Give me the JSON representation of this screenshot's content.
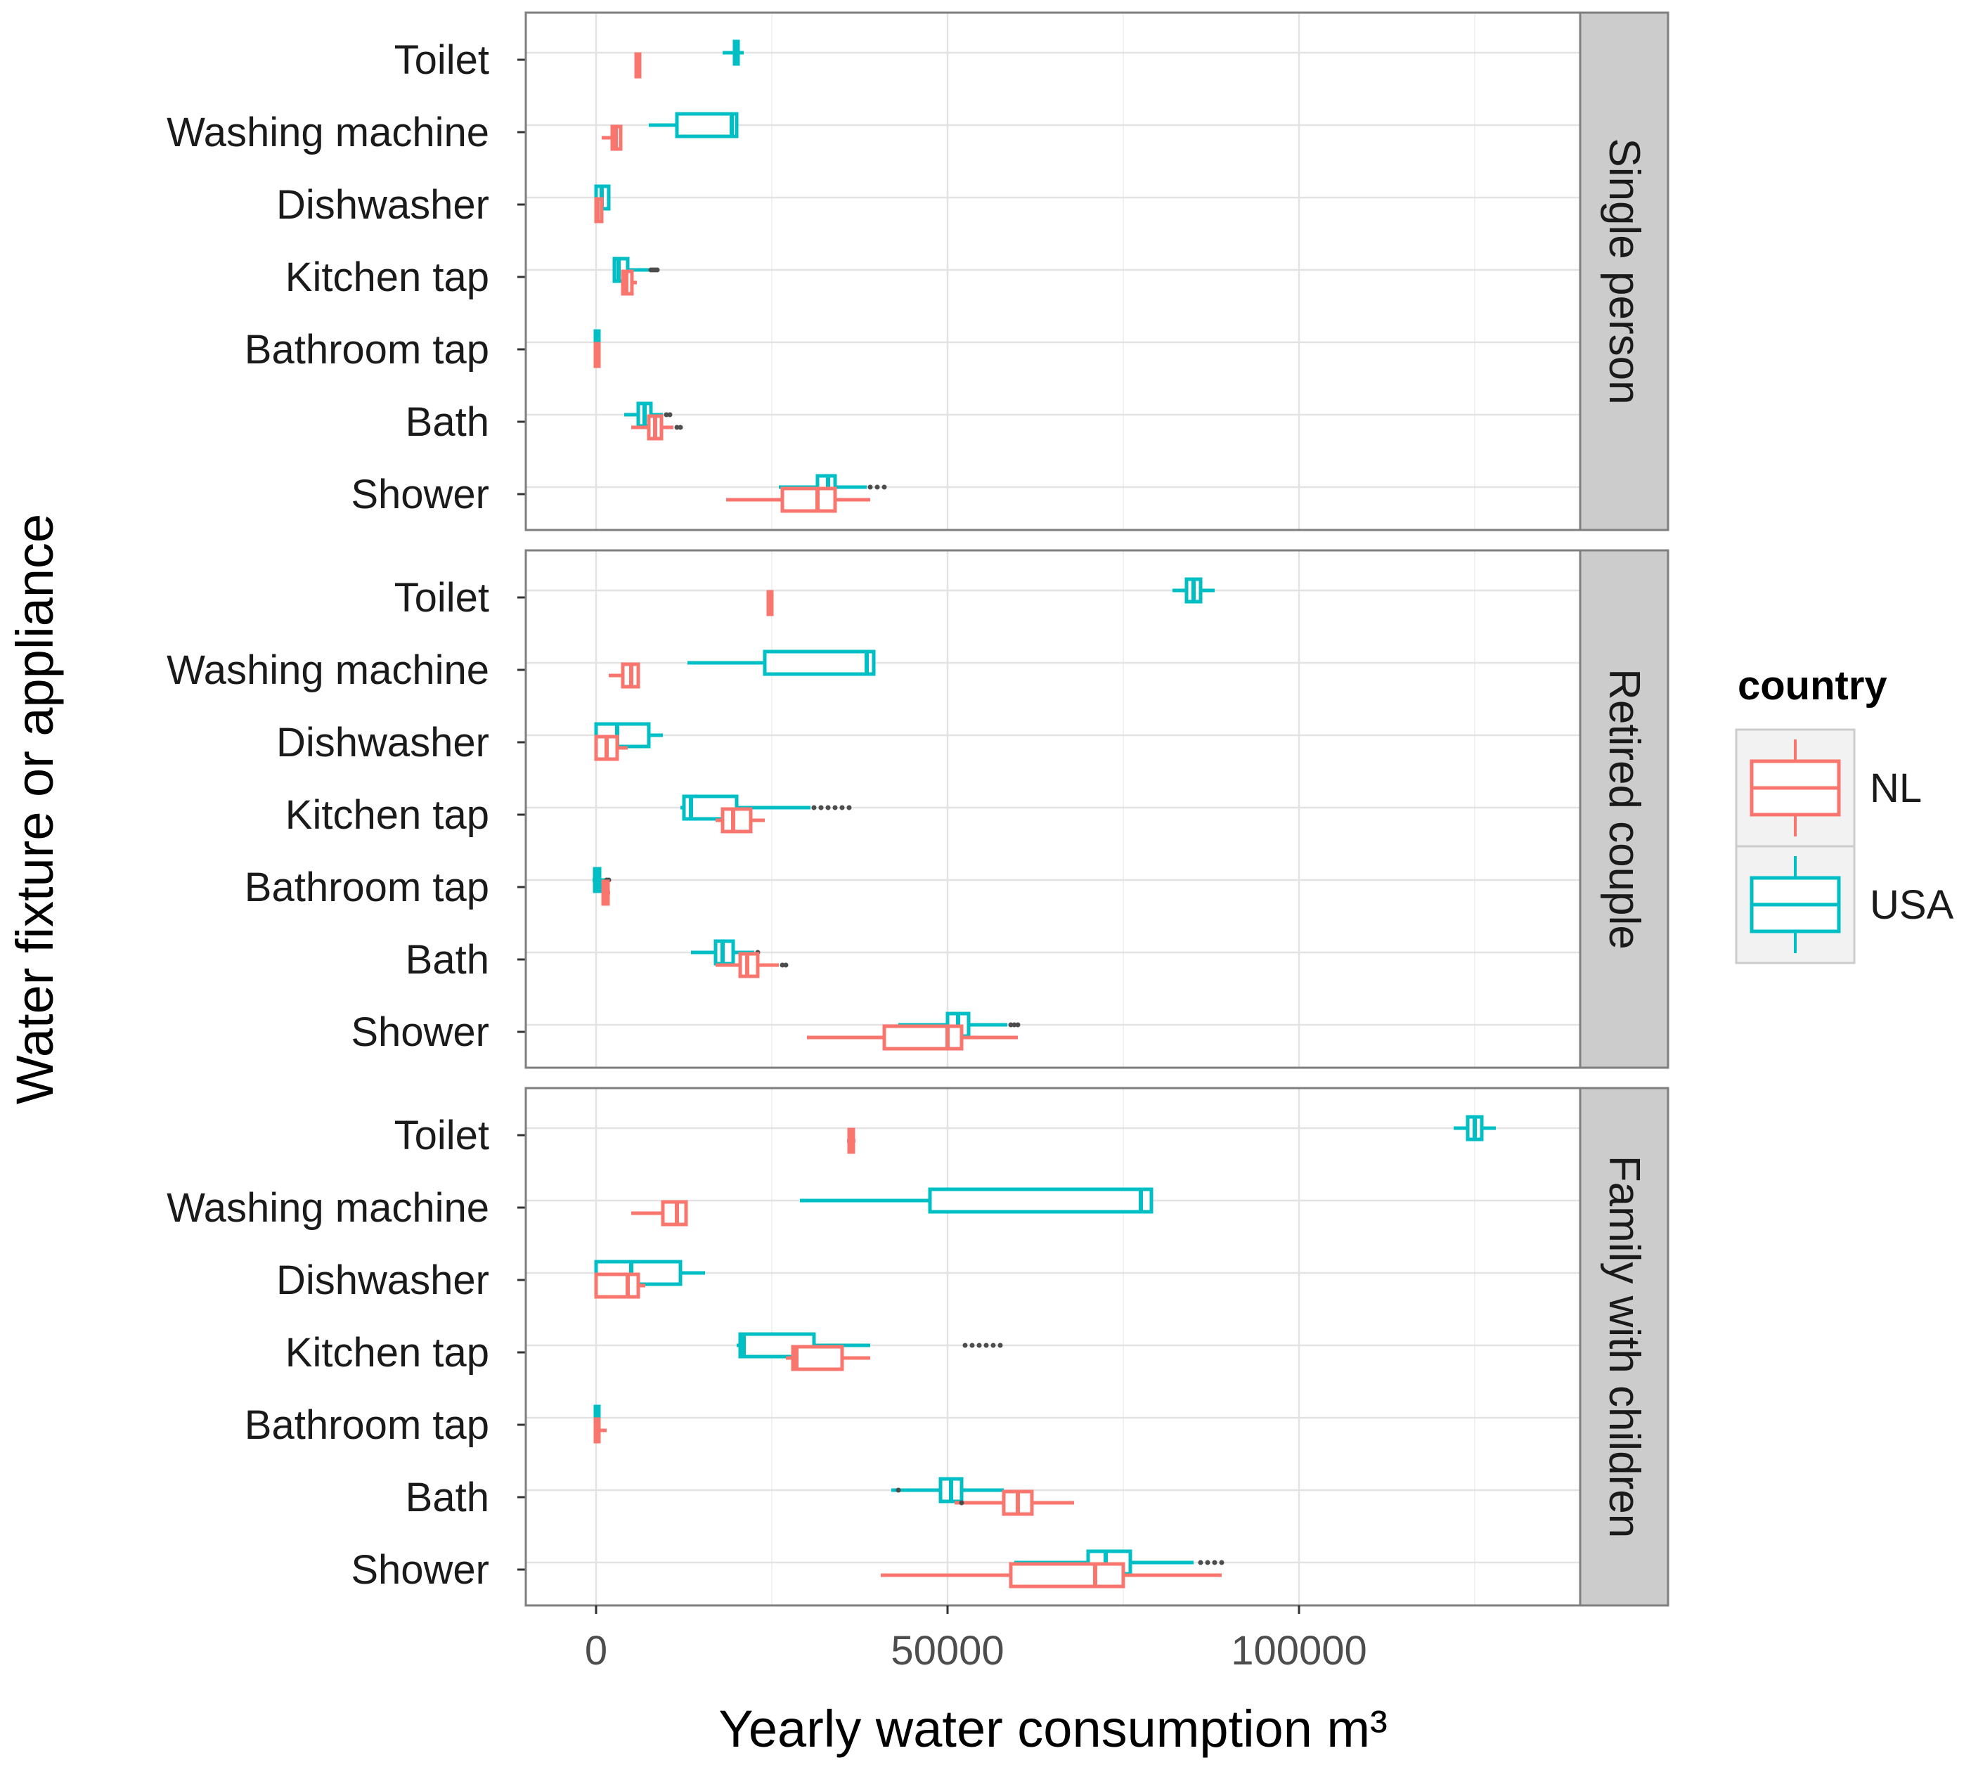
{
  "chart_data": {
    "type": "boxplot",
    "orientation": "horizontal",
    "xlabel": "Yearly water consumption m³",
    "ylabel": "Water fixture or appliance",
    "xlim": [
      -10000,
      140000
    ],
    "x_ticks": [
      0,
      50000,
      100000
    ],
    "x_tick_labels": [
      "0",
      "50000",
      "100000"
    ],
    "grid": true,
    "legend": {
      "title": "country",
      "position": "right",
      "entries": [
        {
          "name": "NL",
          "color": "#F8766D"
        },
        {
          "name": "USA",
          "color": "#00BFC4"
        }
      ]
    },
    "categories": [
      "Toilet",
      "Washing machine",
      "Dishwasher",
      "Kitchen tap",
      "Bathroom tap",
      "Bath",
      "Shower"
    ],
    "panels": [
      {
        "label": "Single person",
        "boxes": {
          "Toilet": {
            "NL": {
              "whisker_low": 5700,
              "q1": 5700,
              "median": 5900,
              "q3": 6100,
              "whisker_high": 6100,
              "outliers": []
            },
            "USA": {
              "whisker_low": 18000,
              "q1": 19700,
              "median": 19900,
              "q3": 20100,
              "whisker_high": 21000,
              "outliers": []
            }
          },
          "Washing machine": {
            "NL": {
              "whisker_low": 800,
              "q1": 2300,
              "median": 2800,
              "q3": 3500,
              "whisker_high": 3500,
              "outliers": []
            },
            "USA": {
              "whisker_low": 7500,
              "q1": 11500,
              "median": 19300,
              "q3": 20000,
              "whisker_high": 20000,
              "outliers": []
            }
          },
          "Dishwasher": {
            "NL": {
              "whisker_low": 0,
              "q1": 0,
              "median": 200,
              "q3": 800,
              "whisker_high": 900,
              "outliers": []
            },
            "USA": {
              "whisker_low": 0,
              "q1": 0,
              "median": 800,
              "q3": 1800,
              "whisker_high": 1900,
              "outliers": []
            }
          },
          "Kitchen tap": {
            "NL": {
              "whisker_low": 3600,
              "q1": 3800,
              "median": 4300,
              "q3": 5100,
              "whisker_high": 5800,
              "outliers": []
            },
            "USA": {
              "whisker_low": 2500,
              "q1": 2600,
              "median": 3200,
              "q3": 4500,
              "whisker_high": 7500,
              "outliers": [
                7800,
                8100,
                8400,
                8700
              ]
            }
          },
          "Bathroom tap": {
            "NL": {
              "whisker_low": -300,
              "q1": -100,
              "median": 0,
              "q3": 200,
              "whisker_high": 300,
              "outliers": []
            },
            "USA": {
              "whisker_low": -300,
              "q1": -100,
              "median": 0,
              "q3": 200,
              "whisker_high": 300,
              "outliers": []
            }
          },
          "Bath": {
            "NL": {
              "whisker_low": 5000,
              "q1": 7500,
              "median": 8400,
              "q3": 9300,
              "whisker_high": 11000,
              "outliers": [
                11500,
                12000
              ]
            },
            "USA": {
              "whisker_low": 4000,
              "q1": 6000,
              "median": 6900,
              "q3": 7800,
              "whisker_high": 9500,
              "outliers": [
                10000,
                10500
              ]
            }
          },
          "Shower": {
            "NL": {
              "whisker_low": 18500,
              "q1": 26500,
              "median": 31500,
              "q3": 34000,
              "whisker_high": 39000,
              "outliers": []
            },
            "USA": {
              "whisker_low": 26000,
              "q1": 31500,
              "median": 33000,
              "q3": 34000,
              "whisker_high": 38500,
              "outliers": [
                39000,
                40000,
                41000
              ]
            }
          }
        }
      },
      {
        "label": "Retired couple",
        "boxes": {
          "Toilet": {
            "NL": {
              "whisker_low": 24300,
              "q1": 24500,
              "median": 24700,
              "q3": 24900,
              "whisker_high": 25100,
              "outliers": []
            },
            "USA": {
              "whisker_low": 82000,
              "q1": 84000,
              "median": 85000,
              "q3": 86000,
              "whisker_high": 88000,
              "outliers": []
            }
          },
          "Washing machine": {
            "NL": {
              "whisker_low": 1800,
              "q1": 3800,
              "median": 5000,
              "q3": 6000,
              "whisker_high": 6200,
              "outliers": []
            },
            "USA": {
              "whisker_low": 13000,
              "q1": 24000,
              "median": 38500,
              "q3": 39500,
              "whisker_high": 39500,
              "outliers": []
            }
          },
          "Dishwasher": {
            "NL": {
              "whisker_low": 0,
              "q1": 0,
              "median": 1500,
              "q3": 3000,
              "whisker_high": 4500,
              "outliers": []
            },
            "USA": {
              "whisker_low": 0,
              "q1": 0,
              "median": 3000,
              "q3": 7500,
              "whisker_high": 9500,
              "outliers": []
            }
          },
          "Kitchen tap": {
            "NL": {
              "whisker_low": 17000,
              "q1": 18000,
              "median": 19500,
              "q3": 22000,
              "whisker_high": 24000,
              "outliers": []
            },
            "USA": {
              "whisker_low": 12000,
              "q1": 12500,
              "median": 13500,
              "q3": 20000,
              "whisker_high": 30500,
              "outliers": [
                31000,
                32000,
                33000,
                34000,
                35000,
                36000
              ]
            }
          },
          "Bathroom tap": {
            "NL": {
              "whisker_low": 800,
              "q1": 1000,
              "median": 1300,
              "q3": 1700,
              "whisker_high": 2000,
              "outliers": []
            },
            "USA": {
              "whisker_low": -500,
              "q1": -200,
              "median": 0,
              "q3": 500,
              "whisker_high": 1200,
              "outliers": [
                1500,
                1800
              ]
            }
          },
          "Bath": {
            "NL": {
              "whisker_low": 17000,
              "q1": 20500,
              "median": 21500,
              "q3": 23000,
              "whisker_high": 26000,
              "outliers": [
                26500,
                27000
              ]
            },
            "USA": {
              "whisker_low": 13500,
              "q1": 17000,
              "median": 18000,
              "q3": 19500,
              "whisker_high": 22500,
              "outliers": [
                23000
              ]
            }
          },
          "Shower": {
            "NL": {
              "whisker_low": 30000,
              "q1": 41000,
              "median": 50000,
              "q3": 52000,
              "whisker_high": 60000,
              "outliers": []
            },
            "USA": {
              "whisker_low": 43000,
              "q1": 50000,
              "median": 51500,
              "q3": 53000,
              "whisker_high": 58500,
              "outliers": [
                59000,
                59500,
                60000
              ]
            }
          }
        }
      },
      {
        "label": "Family with children",
        "boxes": {
          "Toilet": {
            "NL": {
              "whisker_low": 35700,
              "q1": 36000,
              "median": 36300,
              "q3": 36600,
              "whisker_high": 36900,
              "outliers": []
            },
            "USA": {
              "whisker_low": 122000,
              "q1": 124000,
              "median": 125000,
              "q3": 126000,
              "whisker_high": 128000,
              "outliers": []
            }
          },
          "Washing machine": {
            "NL": {
              "whisker_low": 5000,
              "q1": 9500,
              "median": 11500,
              "q3": 12800,
              "whisker_high": 12800,
              "outliers": []
            },
            "USA": {
              "whisker_low": 29000,
              "q1": 47500,
              "median": 77500,
              "q3": 79000,
              "whisker_high": 79000,
              "outliers": []
            }
          },
          "Dishwasher": {
            "NL": {
              "whisker_low": 0,
              "q1": 0,
              "median": 4500,
              "q3": 6000,
              "whisker_high": 7000,
              "outliers": []
            },
            "USA": {
              "whisker_low": 0,
              "q1": 0,
              "median": 5000,
              "q3": 12000,
              "whisker_high": 15500,
              "outliers": []
            }
          },
          "Kitchen tap": {
            "NL": {
              "whisker_low": 27000,
              "q1": 28000,
              "median": 28500,
              "q3": 35000,
              "whisker_high": 39000,
              "outliers": []
            },
            "USA": {
              "whisker_low": 20000,
              "q1": 20500,
              "median": 21000,
              "q3": 31000,
              "whisker_high": 39000,
              "outliers": [
                52500,
                53500,
                54500,
                55500,
                56500,
                57500
              ]
            }
          },
          "Bathroom tap": {
            "NL": {
              "whisker_low": -300,
              "q1": -100,
              "median": 0,
              "q3": 400,
              "whisker_high": 1500,
              "outliers": []
            },
            "USA": {
              "whisker_low": -300,
              "q1": -100,
              "median": 0,
              "q3": 200,
              "whisker_high": 300,
              "outliers": []
            }
          },
          "Bath": {
            "NL": {
              "whisker_low": 51000,
              "q1": 58000,
              "median": 60000,
              "q3": 62000,
              "whisker_high": 68000,
              "outliers": [
                52000
              ]
            },
            "USA": {
              "whisker_low": 42000,
              "q1": 49000,
              "median": 50500,
              "q3": 52000,
              "whisker_high": 58000,
              "outliers": [
                43000
              ]
            }
          },
          "Shower": {
            "NL": {
              "whisker_low": 40500,
              "q1": 59000,
              "median": 71000,
              "q3": 75000,
              "whisker_high": 89000,
              "outliers": []
            },
            "USA": {
              "whisker_low": 59500,
              "q1": 70000,
              "median": 72500,
              "q3": 76000,
              "whisker_high": 85000,
              "outliers": [
                86000,
                87000,
                88000,
                89000
              ]
            }
          }
        }
      }
    ]
  }
}
